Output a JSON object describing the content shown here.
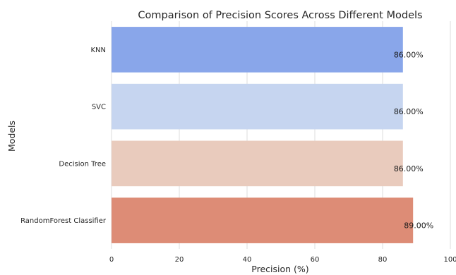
{
  "chart_data": {
    "type": "bar",
    "orientation": "horizontal",
    "title": "Comparison of Precision Scores Across Different Models",
    "xlabel": "Precision (%)",
    "ylabel": "Models",
    "xlim": [
      0,
      100
    ],
    "xticks": [
      0,
      20,
      40,
      60,
      80,
      100
    ],
    "grid": true,
    "categories": [
      "KNN",
      "SVC",
      "Decision Tree",
      "RandomForest Classifier"
    ],
    "values": [
      86,
      86,
      86,
      89
    ],
    "data_labels": [
      "86.00%",
      "86.00%",
      "86.00%",
      "89.00%"
    ],
    "colors": [
      "#89a6ea",
      "#c6d5f0",
      "#e9cbbd",
      "#dd8c76"
    ]
  }
}
